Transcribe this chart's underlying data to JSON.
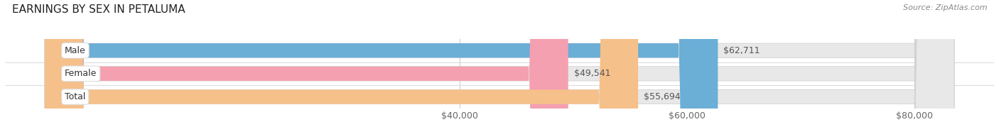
{
  "title": "EARNINGS BY SEX IN PETALUMA",
  "source": "Source: ZipAtlas.com",
  "categories": [
    "Male",
    "Female",
    "Total"
  ],
  "values": [
    62711,
    49541,
    55694
  ],
  "bar_colors": [
    "#6baed6",
    "#f4a0b0",
    "#f5c08a"
  ],
  "bar_labels": [
    "$62,711",
    "$49,541",
    "$55,694"
  ],
  "x_min": 0,
  "x_max": 87000,
  "x_ticks": [
    40000,
    60000,
    80000
  ],
  "x_tick_labels": [
    "$40,000",
    "$60,000",
    "$80,000"
  ],
  "bg_color": "#ffffff",
  "bar_bg_color": "#e8e8e8",
  "bar_height": 0.62,
  "bar_gap": 0.38,
  "title_fontsize": 11,
  "source_fontsize": 8,
  "label_fontsize": 9,
  "tick_fontsize": 9,
  "grid_color": "#cccccc",
  "separator_color": "#dddddd"
}
